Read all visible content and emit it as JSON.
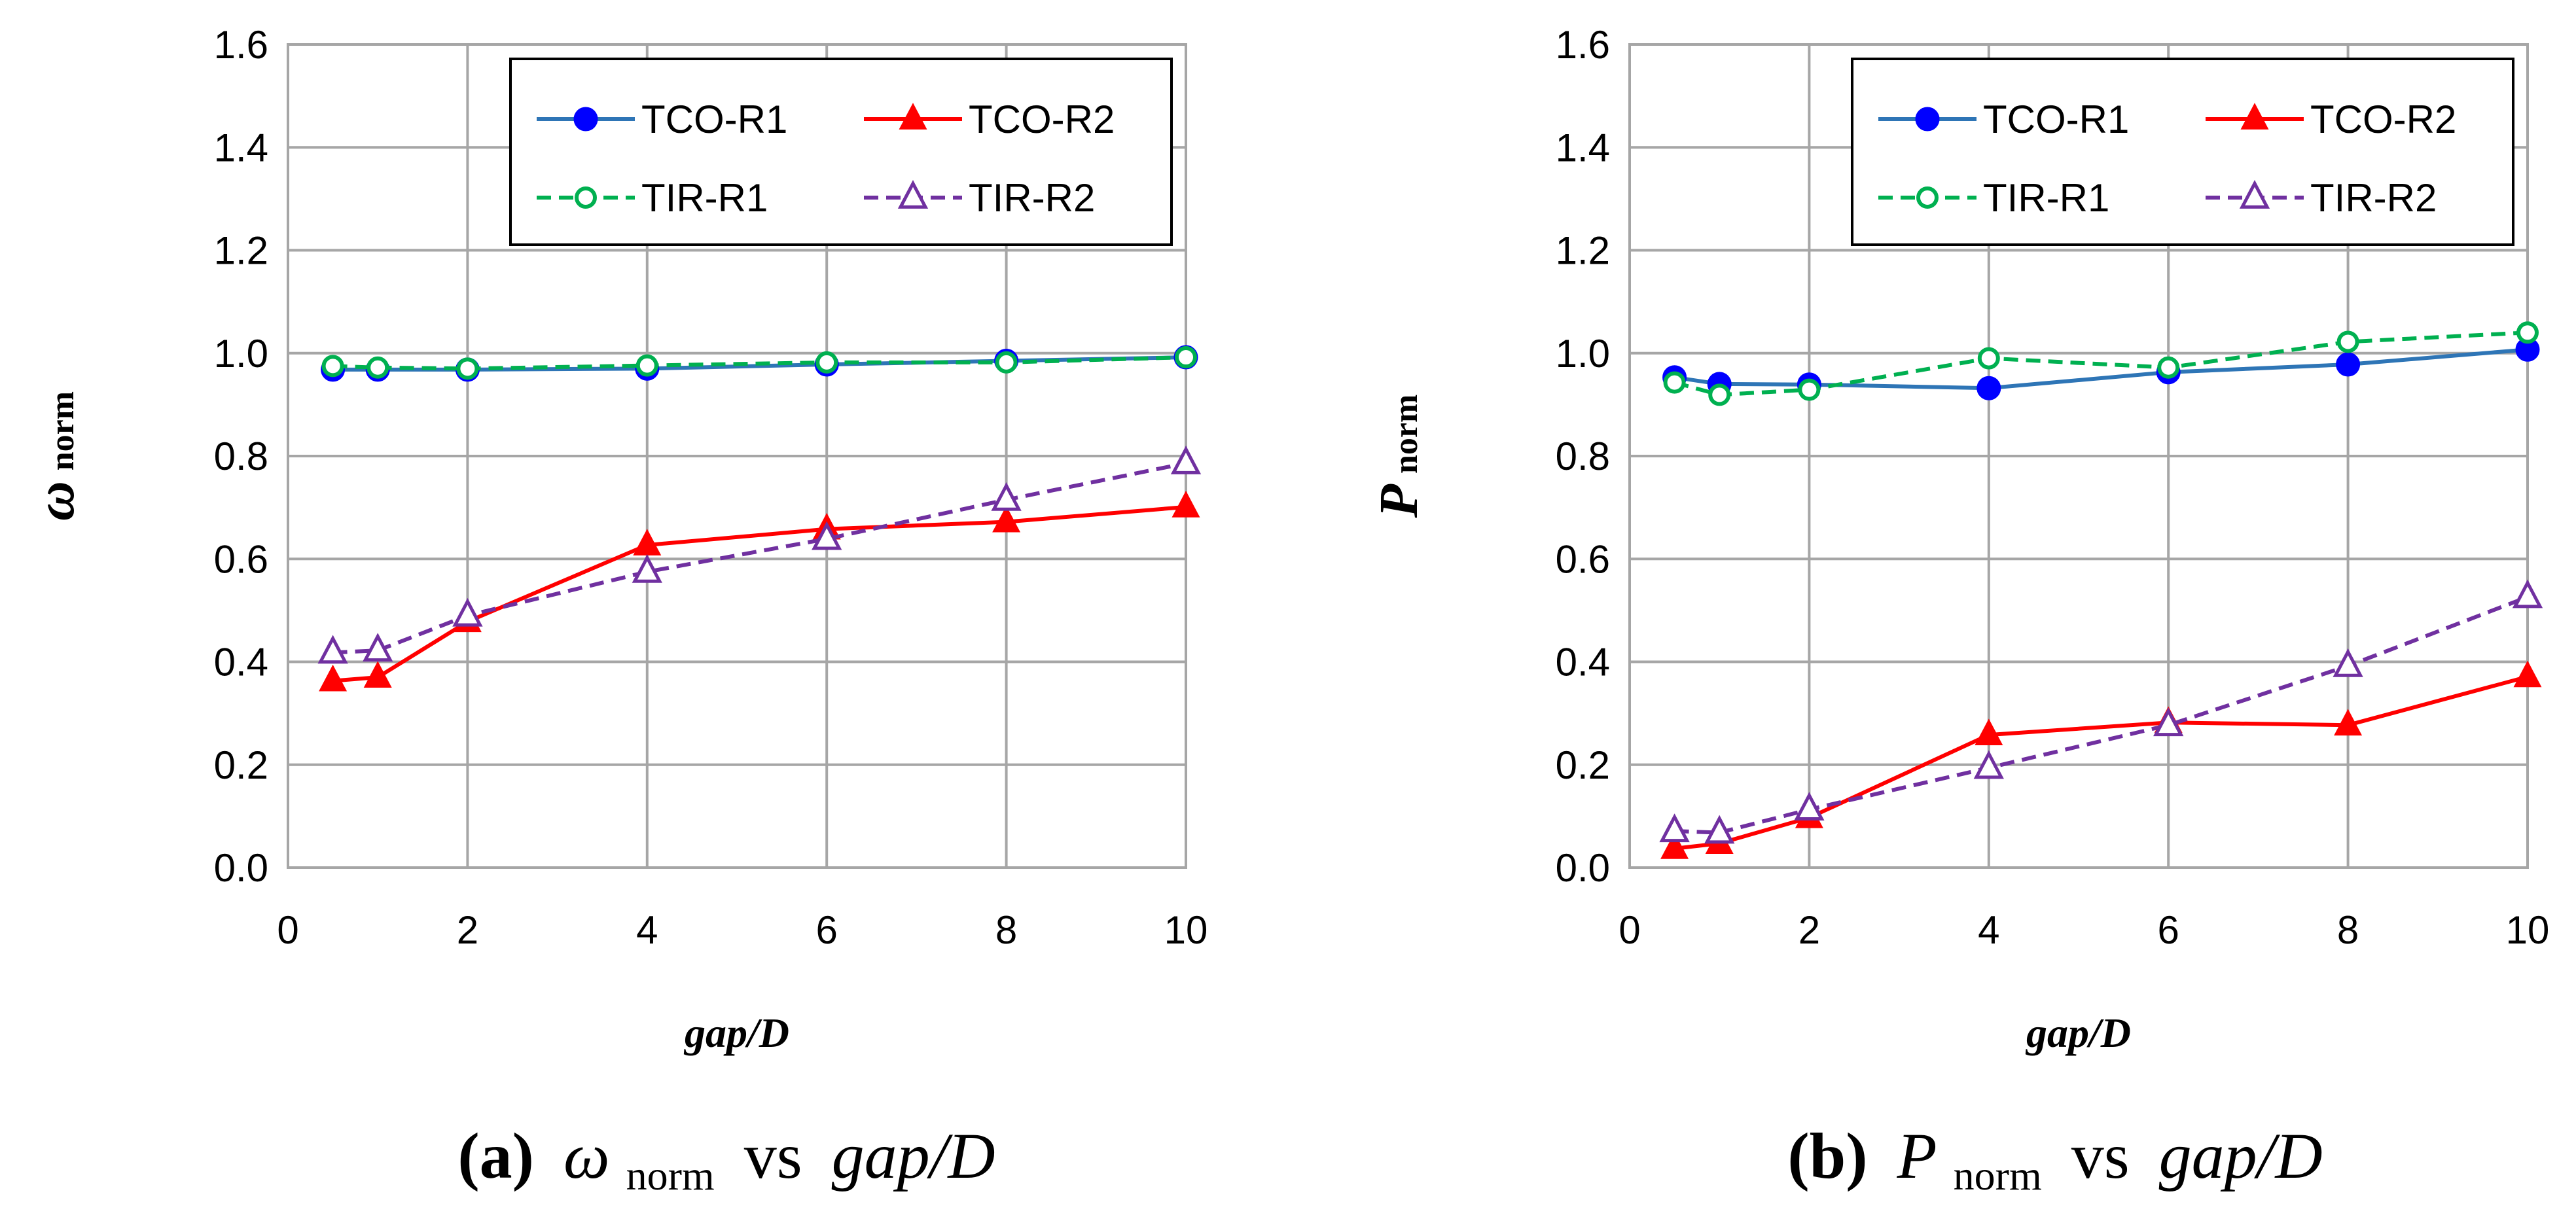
{
  "chart_data": [
    {
      "type": "line",
      "panel": "a",
      "caption": {
        "label": "(a)",
        "symbol": "ω",
        "subscript": "norm",
        "vs": "vs",
        "xvar": "gap/D"
      },
      "xlabel": "gap/D",
      "ylabel": {
        "symbol": "ω",
        "subscript": "norm"
      },
      "xlim": [
        0,
        10
      ],
      "ylim": [
        0,
        1.6
      ],
      "xticks": [
        "0",
        "2",
        "4",
        "6",
        "8",
        "10"
      ],
      "yticks": [
        "0.0",
        "0.2",
        "0.4",
        "0.6",
        "0.8",
        "1.0",
        "1.2",
        "1.4",
        "1.6"
      ],
      "grid": true,
      "legend_position": "top-right",
      "x": [
        0.5,
        1,
        2,
        4,
        6,
        8,
        10
      ],
      "series": [
        {
          "name": "TCO-R1",
          "color": "#2E75B6",
          "marker": "circle-filled",
          "marker_color": "#0000FF",
          "dashed": false,
          "values": [
            0.968,
            0.968,
            0.968,
            0.97,
            0.978,
            0.985,
            0.992
          ]
        },
        {
          "name": "TCO-R2",
          "color": "#FF0000",
          "marker": "triangle-filled",
          "marker_color": "#FF0000",
          "dashed": false,
          "values": [
            0.363,
            0.37,
            0.478,
            0.627,
            0.658,
            0.672,
            0.701
          ]
        },
        {
          "name": "TIR-R1",
          "color": "#00B050",
          "marker": "circle-open",
          "marker_color": "#00B050",
          "dashed": true,
          "values": [
            0.975,
            0.972,
            0.97,
            0.976,
            0.982,
            0.982,
            0.992
          ]
        },
        {
          "name": "TIR-R2",
          "color": "#7030A0",
          "marker": "triangle-open",
          "marker_color": "#7030A0",
          "dashed": true,
          "values": [
            0.418,
            0.422,
            0.49,
            0.575,
            0.639,
            0.715,
            0.786
          ]
        }
      ]
    },
    {
      "type": "line",
      "panel": "b",
      "caption": {
        "label": "(b)",
        "symbol": "P",
        "subscript": "norm",
        "vs": "vs",
        "xvar": "gap/D"
      },
      "xlabel": "gap/D",
      "ylabel": {
        "symbol": "P",
        "subscript": "norm"
      },
      "xlim": [
        0,
        10
      ],
      "ylim": [
        0,
        1.6
      ],
      "xticks": [
        "0",
        "2",
        "4",
        "6",
        "8",
        "10"
      ],
      "yticks": [
        "0.0",
        "0.2",
        "0.4",
        "0.6",
        "0.8",
        "1.0",
        "1.2",
        "1.4",
        "1.6"
      ],
      "grid": true,
      "legend_position": "top-right",
      "x": [
        0.5,
        1,
        2,
        4,
        6,
        8,
        10
      ],
      "series": [
        {
          "name": "TCO-R1",
          "color": "#2E75B6",
          "marker": "circle-filled",
          "marker_color": "#0000FF",
          "dashed": false,
          "values": [
            0.953,
            0.94,
            0.939,
            0.932,
            0.963,
            0.978,
            1.007
          ]
        },
        {
          "name": "TCO-R2",
          "color": "#FF0000",
          "marker": "triangle-filled",
          "marker_color": "#FF0000",
          "dashed": false,
          "values": [
            0.037,
            0.047,
            0.097,
            0.258,
            0.282,
            0.277,
            0.371
          ]
        },
        {
          "name": "TIR-R1",
          "color": "#00B050",
          "marker": "circle-open",
          "marker_color": "#00B050",
          "dashed": true,
          "values": [
            0.943,
            0.919,
            0.929,
            0.99,
            0.972,
            1.022,
            1.04
          ]
        },
        {
          "name": "TIR-R2",
          "color": "#7030A0",
          "marker": "triangle-open",
          "marker_color": "#7030A0",
          "dashed": true,
          "values": [
            0.071,
            0.068,
            0.113,
            0.194,
            0.277,
            0.392,
            0.526
          ]
        }
      ]
    }
  ]
}
